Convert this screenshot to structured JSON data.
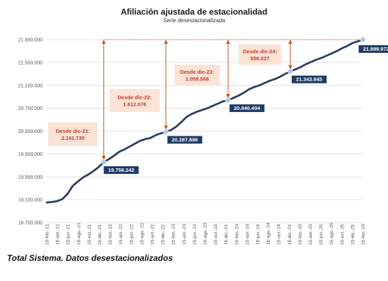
{
  "chart_data": {
    "type": "line",
    "title": "Afiliación ajustada de estacionalidad",
    "subtitle": "Serie desestacionalizada",
    "caption": "Total Sistema. Datos desestacionalizados",
    "ylim": [
      18700000,
      22300000
    ],
    "y_ticks": [
      "18.700.000",
      "19.100.000",
      "19.500.000",
      "19.900.000",
      "20.300.000",
      "20.700.000",
      "21.100.000",
      "21.500.000",
      "21.900.000"
    ],
    "x_ticks": [
      "15-feb.-21",
      "15-abr.-21",
      "15-jun.-21",
      "15-ago.-21",
      "15-oct.-21",
      "15-dic.-21",
      "15-feb.-22",
      "15-abr.-22",
      "15-jun.-22",
      "15-ago.-22",
      "15-oct.-22",
      "15-dic.-22",
      "15-feb.-23",
      "15-abr.-23",
      "15-jun.-23",
      "15-ago.-23",
      "15-oct.-23",
      "15-dic.-23",
      "15-feb.-24",
      "15-abr.-24",
      "15-jun.-24",
      "15-ago.-24",
      "15-oct.-24",
      "15-dic.-24",
      "15-feb.-25",
      "15-abr.-25",
      "15-jun.-25",
      "15-ago.-25",
      "15-oct.-25",
      "15-dic.-25",
      "15-feb.-26"
    ],
    "grid": true,
    "series": [
      {
        "values": [
          19050000,
          19060000,
          19075000,
          19110000,
          19200000,
          19340000,
          19420000,
          19490000,
          19540000,
          19600000,
          19670000,
          19758242,
          19810000,
          19870000,
          19940000,
          19980000,
          20030000,
          20080000,
          20130000,
          20160000,
          20180000,
          20230000,
          20260000,
          20287896,
          20320000,
          20380000,
          20460000,
          20550000,
          20600000,
          20640000,
          20670000,
          20700000,
          20740000,
          20780000,
          20820000,
          20840404,
          20880000,
          20920000,
          20970000,
          21030000,
          21070000,
          21100000,
          21140000,
          21180000,
          21210000,
          21250000,
          21300000,
          21343945,
          21380000,
          21420000,
          21470000,
          21510000,
          21550000,
          21580000,
          21620000,
          21660000,
          21700000,
          21750000,
          21790000,
          21840000,
          21870000,
          21899972
        ]
      }
    ],
    "highlight_points": [
      {
        "index": 11,
        "label": "19.758.242"
      },
      {
        "index": 23,
        "label": "20.287.896"
      },
      {
        "index": 35,
        "label": "20.840.404"
      },
      {
        "index": 47,
        "label": "21.343.945"
      },
      {
        "index": 61,
        "label": "21.899.972"
      }
    ],
    "annotations": [
      {
        "line1": "Desde dic-21:",
        "line2": "2.141.730",
        "from_index": 11
      },
      {
        "line1": "Desde dic-22:",
        "line2": "1.612.076",
        "from_index": 23
      },
      {
        "line1": "Desde dic-23:",
        "line2": "1.059.568",
        "from_index": 35
      },
      {
        "line1": "Desde dic-24:",
        "line2": "556.027",
        "from_index": 47
      }
    ],
    "colors": {
      "line": "#2e3f5c",
      "marker": "#a9c7e8",
      "label_box": "#1f3b66",
      "annotation_box": "#fbe3d6",
      "annotation_text": "#c0392b",
      "arrow": "#c55a11",
      "reference_line": "#d9534f",
      "grid": "#d9d9d9"
    }
  }
}
